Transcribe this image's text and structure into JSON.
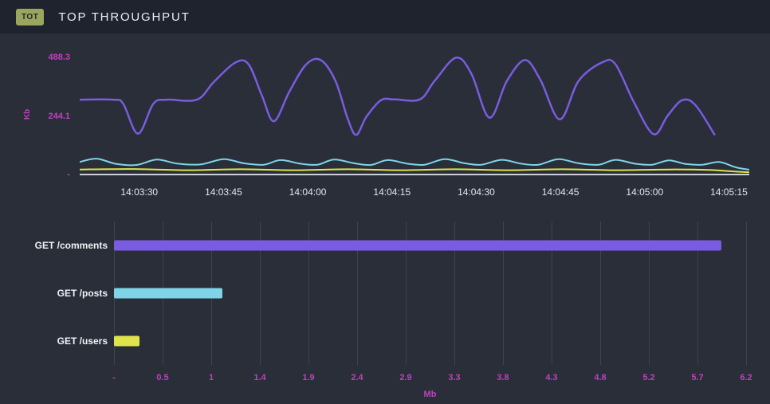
{
  "header": {
    "badge": "TOT",
    "title": "TOP THROUGHPUT"
  },
  "colors": {
    "background": "#292e38",
    "header_bg": "#1f232d",
    "badge_bg": "#9aa55e",
    "axis_magenta": "#c13fc1",
    "grid": "#3d4350",
    "axis_line": "#ccd1d9",
    "comments": "#7a5ce0",
    "posts": "#7fd4e8",
    "users": "#dfe44b"
  },
  "chart_data": [
    {
      "type": "line",
      "ylabel": "Kb",
      "yticks": [
        {
          "label": "488.3",
          "value": 488.3
        },
        {
          "label": "244.1",
          "value": 244.15
        },
        {
          "label": "-",
          "value": 0
        }
      ],
      "x_labels": [
        "14:03:30",
        "14:03:45",
        "14:04:00",
        "14:04:15",
        "14:04:30",
        "14:04:45",
        "14:05:00",
        "14:05:15"
      ],
      "ymax": 530,
      "grid": "off",
      "legend": "none",
      "series": [
        {
          "name": "GET /comments",
          "color": "#7a5ce0",
          "width": 2.5,
          "points": [
            [
              0,
              312
            ],
            [
              0.05,
              312
            ],
            [
              0.065,
              295
            ],
            [
              0.087,
              170
            ],
            [
              0.11,
              295
            ],
            [
              0.13,
              312
            ],
            [
              0.175,
              312
            ],
            [
              0.2,
              385
            ],
            [
              0.232,
              466
            ],
            [
              0.252,
              460
            ],
            [
              0.272,
              330
            ],
            [
              0.29,
              222
            ],
            [
              0.313,
              345
            ],
            [
              0.338,
              458
            ],
            [
              0.36,
              477
            ],
            [
              0.382,
              390
            ],
            [
              0.4,
              235
            ],
            [
              0.413,
              165
            ],
            [
              0.428,
              240
            ],
            [
              0.45,
              310
            ],
            [
              0.47,
              313
            ],
            [
              0.508,
              313
            ],
            [
              0.53,
              390
            ],
            [
              0.562,
              487
            ],
            [
              0.585,
              420
            ],
            [
              0.612,
              237
            ],
            [
              0.638,
              390
            ],
            [
              0.665,
              477
            ],
            [
              0.688,
              395
            ],
            [
              0.717,
              230
            ],
            [
              0.745,
              390
            ],
            [
              0.78,
              467
            ],
            [
              0.8,
              460
            ],
            [
              0.828,
              300
            ],
            [
              0.857,
              168
            ],
            [
              0.878,
              245
            ],
            [
              0.9,
              310
            ],
            [
              0.92,
              288
            ],
            [
              0.948,
              167
            ]
          ]
        },
        {
          "name": "GET /posts",
          "color": "#7fd4e8",
          "width": 2,
          "points": [
            [
              0,
              52
            ],
            [
              0.025,
              66
            ],
            [
              0.055,
              44
            ],
            [
              0.085,
              40
            ],
            [
              0.115,
              62
            ],
            [
              0.145,
              46
            ],
            [
              0.18,
              42
            ],
            [
              0.215,
              64
            ],
            [
              0.245,
              47
            ],
            [
              0.275,
              41
            ],
            [
              0.3,
              60
            ],
            [
              0.33,
              45
            ],
            [
              0.355,
              41
            ],
            [
              0.38,
              62
            ],
            [
              0.41,
              47
            ],
            [
              0.435,
              40
            ],
            [
              0.46,
              60
            ],
            [
              0.49,
              45
            ],
            [
              0.515,
              41
            ],
            [
              0.545,
              64
            ],
            [
              0.575,
              47
            ],
            [
              0.6,
              41
            ],
            [
              0.63,
              61
            ],
            [
              0.66,
              45
            ],
            [
              0.685,
              41
            ],
            [
              0.715,
              64
            ],
            [
              0.745,
              47
            ],
            [
              0.775,
              41
            ],
            [
              0.8,
              61
            ],
            [
              0.83,
              45
            ],
            [
              0.855,
              41
            ],
            [
              0.88,
              59
            ],
            [
              0.905,
              44
            ],
            [
              0.93,
              41
            ],
            [
              0.955,
              52
            ],
            [
              0.98,
              30
            ],
            [
              1,
              20
            ]
          ]
        },
        {
          "name": "GET /users",
          "color": "#dfe44b",
          "width": 2,
          "points": [
            [
              0,
              21
            ],
            [
              0.08,
              23
            ],
            [
              0.16,
              18
            ],
            [
              0.24,
              22
            ],
            [
              0.32,
              18
            ],
            [
              0.4,
              22
            ],
            [
              0.48,
              18
            ],
            [
              0.56,
              22
            ],
            [
              0.64,
              18
            ],
            [
              0.72,
              22
            ],
            [
              0.8,
              18
            ],
            [
              0.88,
              21
            ],
            [
              0.94,
              19
            ],
            [
              0.97,
              14
            ],
            [
              1,
              9
            ]
          ]
        }
      ]
    },
    {
      "type": "bar",
      "orientation": "horizontal",
      "categories": [
        "GET /comments",
        "GET /posts",
        "GET /users"
      ],
      "values": [
        5.96,
        1.06,
        0.25
      ],
      "bar_colors": [
        "#7a5ce0",
        "#7fd4e8",
        "#dfe44b"
      ],
      "xlabel": "Mb",
      "xticks": [
        "-",
        "0.5",
        "1",
        "1.4",
        "1.9",
        "2.4",
        "2.9",
        "3.3",
        "3.8",
        "4.3",
        "4.8",
        "5.2",
        "5.7",
        "6.2"
      ],
      "xmax": 6.2,
      "grid": "vertical"
    }
  ]
}
